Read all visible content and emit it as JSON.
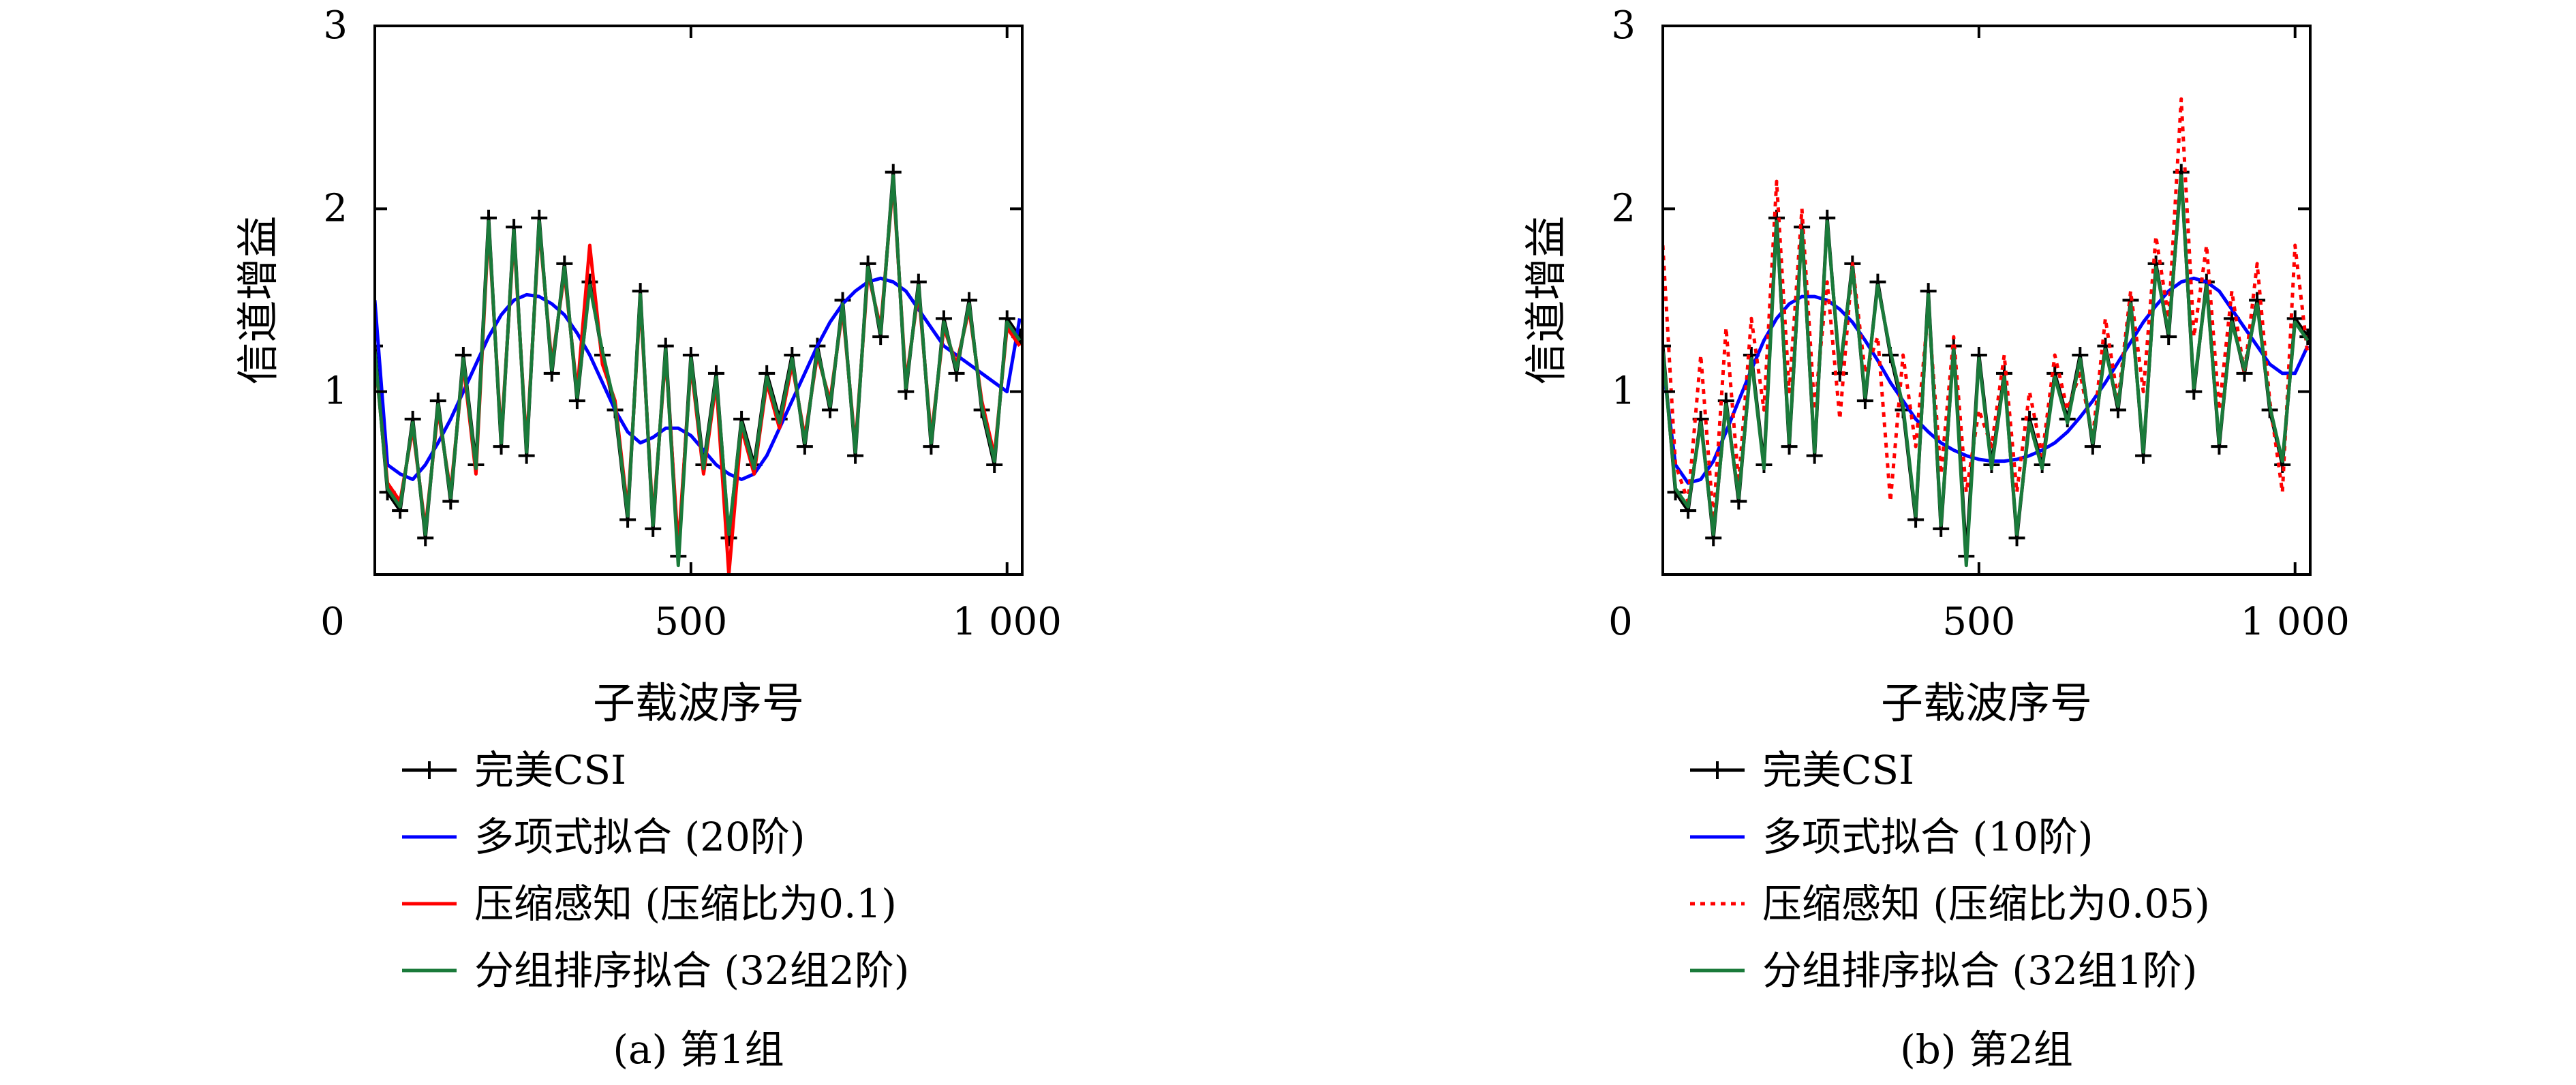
{
  "chart_data": [
    {
      "type": "line",
      "caption": "(a) 第1组",
      "xlabel": "子载波序号",
      "ylabel": "信道增益",
      "xlim": [
        0,
        1024
      ],
      "ylim": [
        0,
        3
      ],
      "x_ticks": [
        0,
        500,
        1000
      ],
      "x_tick_labels": [
        "0",
        "500",
        "1 000"
      ],
      "y_ticks": [
        1,
        2,
        3
      ],
      "y_tick_labels": [
        "1",
        "2",
        "3"
      ],
      "grid": false,
      "legend_position": "below",
      "series": [
        {
          "name": "完美CSI",
          "color": "#000000",
          "style": "solid-plus",
          "x": [
            0,
            20,
            40,
            60,
            80,
            100,
            120,
            140,
            160,
            180,
            200,
            220,
            240,
            260,
            280,
            300,
            320,
            340,
            360,
            380,
            400,
            420,
            440,
            460,
            480,
            500,
            520,
            540,
            560,
            580,
            600,
            620,
            640,
            660,
            680,
            700,
            720,
            740,
            760,
            780,
            800,
            820,
            840,
            860,
            880,
            900,
            920,
            940,
            960,
            980,
            1000,
            1020
          ],
          "y": [
            1.25,
            0.45,
            0.35,
            0.85,
            0.2,
            0.95,
            0.4,
            1.2,
            0.6,
            1.95,
            0.7,
            1.9,
            0.65,
            1.95,
            1.1,
            1.7,
            0.95,
            1.6,
            1.2,
            0.9,
            0.3,
            1.55,
            0.25,
            1.25,
            0.1,
            1.2,
            0.6,
            1.1,
            0.2,
            0.85,
            0.6,
            1.1,
            0.85,
            1.2,
            0.7,
            1.25,
            0.9,
            1.5,
            0.65,
            1.7,
            1.3,
            2.2,
            1.0,
            1.6,
            0.7,
            1.4,
            1.1,
            1.5,
            0.9,
            0.6,
            1.4,
            1.3
          ]
        },
        {
          "name": "多项式拟合 (20阶)",
          "color": "#0000ff",
          "style": "solid",
          "x": [
            0,
            20,
            40,
            60,
            80,
            100,
            120,
            140,
            160,
            180,
            200,
            220,
            240,
            260,
            280,
            300,
            320,
            340,
            360,
            380,
            400,
            420,
            440,
            460,
            480,
            500,
            520,
            540,
            560,
            580,
            600,
            620,
            640,
            660,
            680,
            700,
            720,
            740,
            760,
            780,
            800,
            820,
            840,
            860,
            880,
            900,
            920,
            940,
            960,
            980,
            1000,
            1020
          ],
          "y": [
            1.5,
            0.6,
            0.55,
            0.52,
            0.6,
            0.72,
            0.85,
            1.0,
            1.15,
            1.3,
            1.42,
            1.5,
            1.53,
            1.52,
            1.48,
            1.42,
            1.32,
            1.2,
            1.05,
            0.9,
            0.78,
            0.72,
            0.75,
            0.8,
            0.8,
            0.76,
            0.68,
            0.6,
            0.55,
            0.52,
            0.55,
            0.65,
            0.8,
            0.95,
            1.1,
            1.25,
            1.38,
            1.48,
            1.55,
            1.6,
            1.62,
            1.6,
            1.55,
            1.45,
            1.35,
            1.25,
            1.2,
            1.15,
            1.1,
            1.05,
            1.0,
            1.4
          ]
        },
        {
          "name": "压缩感知 (压缩比为0.1)",
          "color": "#ff0000",
          "style": "solid",
          "x": [
            0,
            20,
            40,
            60,
            80,
            100,
            120,
            140,
            160,
            180,
            200,
            220,
            240,
            260,
            280,
            300,
            320,
            340,
            360,
            380,
            400,
            420,
            440,
            460,
            480,
            500,
            520,
            540,
            560,
            580,
            600,
            620,
            640,
            660,
            680,
            700,
            720,
            740,
            760,
            780,
            800,
            820,
            840,
            860,
            880,
            900,
            920,
            940,
            960,
            980,
            1000,
            1020
          ],
          "y": [
            1.2,
            0.5,
            0.4,
            0.8,
            0.25,
            0.9,
            0.45,
            1.15,
            0.55,
            1.9,
            0.75,
            1.85,
            0.7,
            1.9,
            1.15,
            1.65,
            1.0,
            1.8,
            1.15,
            0.95,
            0.35,
            1.5,
            0.3,
            1.2,
            0.15,
            1.15,
            0.55,
            1.05,
            0.0,
            0.8,
            0.55,
            1.05,
            0.8,
            1.15,
            0.75,
            1.2,
            0.95,
            1.45,
            0.7,
            1.65,
            1.35,
            2.15,
            1.05,
            1.55,
            0.75,
            1.35,
            1.15,
            1.45,
            0.95,
            0.65,
            1.35,
            1.25
          ]
        },
        {
          "name": "分组排序拟合 (32组2阶)",
          "color": "#1a7a3a",
          "style": "solid",
          "x": [
            0,
            20,
            40,
            60,
            80,
            100,
            120,
            140,
            160,
            180,
            200,
            220,
            240,
            260,
            280,
            300,
            320,
            340,
            360,
            380,
            400,
            420,
            440,
            460,
            480,
            500,
            520,
            540,
            560,
            580,
            600,
            620,
            640,
            660,
            680,
            700,
            720,
            740,
            760,
            780,
            800,
            820,
            840,
            860,
            880,
            900,
            920,
            940,
            960,
            980,
            1000,
            1020
          ],
          "y": [
            1.22,
            0.47,
            0.37,
            0.83,
            0.22,
            0.93,
            0.42,
            1.18,
            0.58,
            1.93,
            0.72,
            1.88,
            0.67,
            1.93,
            1.12,
            1.68,
            0.97,
            1.58,
            1.22,
            0.92,
            0.32,
            1.53,
            0.27,
            1.23,
            0.05,
            1.18,
            0.58,
            1.08,
            0.22,
            0.83,
            0.58,
            1.08,
            0.83,
            1.18,
            0.72,
            1.23,
            0.92,
            1.48,
            0.67,
            1.68,
            1.32,
            2.18,
            1.02,
            1.58,
            0.72,
            1.38,
            1.12,
            1.48,
            0.92,
            0.62,
            1.38,
            1.28
          ]
        }
      ]
    },
    {
      "type": "line",
      "caption": "(b) 第2组",
      "xlabel": "子载波序号",
      "ylabel": "信道增益",
      "xlim": [
        0,
        1024
      ],
      "ylim": [
        0,
        3
      ],
      "x_ticks": [
        0,
        500,
        1000
      ],
      "x_tick_labels": [
        "0",
        "500",
        "1 000"
      ],
      "y_ticks": [
        1,
        2,
        3
      ],
      "y_tick_labels": [
        "1",
        "2",
        "3"
      ],
      "grid": false,
      "legend_position": "below",
      "series": [
        {
          "name": "完美CSI",
          "color": "#000000",
          "style": "solid-plus",
          "x": [
            0,
            20,
            40,
            60,
            80,
            100,
            120,
            140,
            160,
            180,
            200,
            220,
            240,
            260,
            280,
            300,
            320,
            340,
            360,
            380,
            400,
            420,
            440,
            460,
            480,
            500,
            520,
            540,
            560,
            580,
            600,
            620,
            640,
            660,
            680,
            700,
            720,
            740,
            760,
            780,
            800,
            820,
            840,
            860,
            880,
            900,
            920,
            940,
            960,
            980,
            1000,
            1020
          ],
          "y": [
            1.25,
            0.45,
            0.35,
            0.85,
            0.2,
            0.95,
            0.4,
            1.2,
            0.6,
            1.95,
            0.7,
            1.9,
            0.65,
            1.95,
            1.1,
            1.7,
            0.95,
            1.6,
            1.2,
            0.9,
            0.3,
            1.55,
            0.25,
            1.25,
            0.1,
            1.2,
            0.6,
            1.1,
            0.2,
            0.85,
            0.6,
            1.1,
            0.85,
            1.2,
            0.7,
            1.25,
            0.9,
            1.5,
            0.65,
            1.7,
            1.3,
            2.2,
            1.0,
            1.6,
            0.7,
            1.4,
            1.1,
            1.5,
            0.9,
            0.6,
            1.4,
            1.3
          ]
        },
        {
          "name": "多项式拟合 (10阶)",
          "color": "#0000ff",
          "style": "solid",
          "x": [
            0,
            20,
            40,
            60,
            80,
            100,
            120,
            140,
            160,
            180,
            200,
            220,
            240,
            260,
            280,
            300,
            320,
            340,
            360,
            380,
            400,
            420,
            440,
            460,
            480,
            500,
            520,
            540,
            560,
            580,
            600,
            620,
            640,
            660,
            680,
            700,
            720,
            740,
            760,
            780,
            800,
            820,
            840,
            860,
            880,
            900,
            920,
            940,
            960,
            980,
            1000,
            1020
          ],
          "y": [
            1.15,
            0.6,
            0.5,
            0.52,
            0.62,
            0.78,
            0.95,
            1.12,
            1.28,
            1.4,
            1.48,
            1.52,
            1.52,
            1.5,
            1.45,
            1.38,
            1.28,
            1.17,
            1.05,
            0.95,
            0.85,
            0.78,
            0.72,
            0.68,
            0.65,
            0.63,
            0.62,
            0.62,
            0.63,
            0.65,
            0.68,
            0.72,
            0.78,
            0.86,
            0.95,
            1.05,
            1.16,
            1.27,
            1.38,
            1.47,
            1.55,
            1.6,
            1.62,
            1.6,
            1.55,
            1.45,
            1.35,
            1.25,
            1.15,
            1.1,
            1.1,
            1.25
          ]
        },
        {
          "name": "压缩感知 (压缩比为0.05)",
          "color": "#ff0000",
          "style": "dotted",
          "x": [
            0,
            20,
            40,
            60,
            80,
            100,
            120,
            140,
            160,
            180,
            200,
            220,
            240,
            260,
            280,
            300,
            320,
            340,
            360,
            380,
            400,
            420,
            440,
            460,
            480,
            500,
            520,
            540,
            560,
            580,
            600,
            620,
            640,
            660,
            680,
            700,
            720,
            740,
            760,
            780,
            800,
            820,
            840,
            860,
            880,
            900,
            920,
            940,
            960,
            980,
            1000,
            1020
          ],
          "y": [
            1.8,
            0.6,
            0.4,
            1.2,
            0.3,
            1.35,
            0.5,
            1.4,
            0.9,
            2.15,
            1.0,
            2.0,
            0.9,
            1.6,
            0.85,
            1.7,
            1.1,
            1.3,
            0.4,
            1.2,
            0.7,
            1.45,
            0.55,
            1.3,
            0.45,
            0.9,
            0.7,
            1.2,
            0.45,
            1.0,
            0.65,
            1.2,
            0.9,
            1.1,
            0.75,
            1.4,
            0.95,
            1.55,
            1.0,
            1.85,
            1.4,
            2.6,
            1.3,
            1.8,
            0.9,
            1.55,
            1.1,
            1.7,
            0.95,
            0.45,
            1.8,
            1.2
          ]
        },
        {
          "name": "分组排序拟合 (32组1阶)",
          "color": "#1a7a3a",
          "style": "solid",
          "x": [
            0,
            20,
            40,
            60,
            80,
            100,
            120,
            140,
            160,
            180,
            200,
            220,
            240,
            260,
            280,
            300,
            320,
            340,
            360,
            380,
            400,
            420,
            440,
            460,
            480,
            500,
            520,
            540,
            560,
            580,
            600,
            620,
            640,
            660,
            680,
            700,
            720,
            740,
            760,
            780,
            800,
            820,
            840,
            860,
            880,
            900,
            920,
            940,
            960,
            980,
            1000,
            1020
          ],
          "y": [
            1.22,
            0.47,
            0.37,
            0.83,
            0.22,
            0.93,
            0.42,
            1.18,
            0.58,
            1.93,
            0.72,
            1.88,
            0.67,
            1.93,
            1.12,
            1.68,
            0.97,
            1.58,
            1.22,
            0.92,
            0.32,
            1.53,
            0.27,
            1.23,
            0.05,
            1.18,
            0.58,
            1.08,
            0.22,
            0.83,
            0.58,
            1.08,
            0.83,
            1.18,
            0.72,
            1.23,
            0.92,
            1.48,
            0.67,
            1.68,
            1.32,
            2.18,
            1.02,
            1.58,
            0.72,
            1.38,
            1.12,
            1.48,
            0.92,
            0.62,
            1.38,
            1.28
          ]
        }
      ]
    }
  ]
}
